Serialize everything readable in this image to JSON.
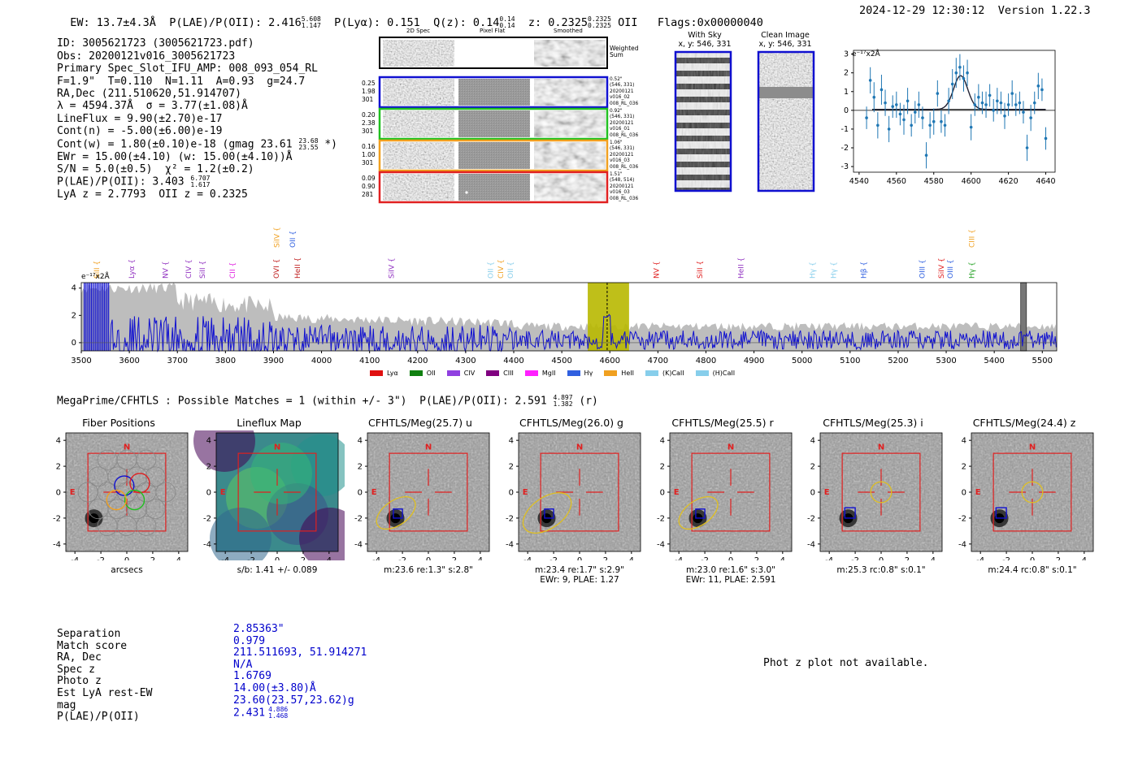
{
  "header": {
    "ew": "EW: 13.7±4.3Å",
    "plae_label": "P(LAE)/P(OII): 2.416",
    "plae_hi": "5.608",
    "plae_lo": "1.147",
    "plya": "P(Lyα): 0.151",
    "qz_label": "Q(z): 0.14",
    "qz_hi": "0.14",
    "qz_lo": "0.14",
    "z_label": "z: 0.2325",
    "z_hi": "0.2325",
    "z_lo": "0.2325",
    "z_line": "OII",
    "flags": "Flags:0x00000040",
    "timestamp": "2024-12-29 12:30:12",
    "version": "Version 1.22.3"
  },
  "info": {
    "id": "ID: 3005621723 (3005621723.pdf)",
    "obs": "Obs: 20200121v016_3005621723",
    "primary": "Primary Spec_Slot_IFU_AMP: 008_093_054_RL",
    "params": "F=1.9\"  T=0.110  N=1.11  A=0.93  g=24.7",
    "radec": "RA,Dec (211.510620,51.914707)",
    "lambda": "λ = 4594.37Å  σ = 3.77(±1.08)Å",
    "lineflux": "LineFlux = 9.90(±2.70)e-17",
    "contn": "Cont(n) = -5.00(±6.00)e-19",
    "contw": "Cont(w) = 1.80(±0.10)e-18 (gmag 23.61",
    "contw_hi": "23.68",
    "contw_lo": "23.55",
    "contw_end": "*)",
    "ewr": "EWr = 15.00(±4.10) (w: 15.00(±4.10))Å",
    "sn": "S/N = 5.0(±0.5)  χ² = 1.2(±0.2)",
    "plae": "P(LAE)/P(OII): 3.403",
    "plae_hi": "6.707",
    "plae_lo": "1.617",
    "lya": "LyA z = 2.7793  OII z = 0.2325"
  },
  "fiber_panel": {
    "col_2d": "2D Spec",
    "col_flat": "Pixel Flat",
    "col_smooth": "Smoothed",
    "weighted": "Weighted Sum",
    "rows": [
      {
        "l1": "0.25",
        "l2": "1.98",
        "l3": "301",
        "r1": "0.52\"",
        "r2": "(546, 331)",
        "r3": "20200121",
        "r4": "v016_02",
        "r5": "008_RL_036",
        "color": "#1010d0"
      },
      {
        "l1": "0.20",
        "l2": "2.38",
        "l3": "301",
        "r1": "0.92\"",
        "r2": "(546, 331)",
        "r3": "20200121",
        "r4": "v016_01",
        "r5": "008_RL_036",
        "color": "#20c020"
      },
      {
        "l1": "0.16",
        "l2": "1.00",
        "l3": "301",
        "r1": "1.06\"",
        "r2": "(546, 331)",
        "r3": "20200121",
        "r4": "v016_03",
        "r5": "008_RL_036",
        "color": "#f0a020"
      },
      {
        "l1": "0.09",
        "l2": "0.90",
        "l3": "281",
        "r1": "1.51\"",
        "r2": "(548, 514)",
        "r3": "20200121",
        "r4": "v016_03",
        "r5": "008_RL_036",
        "color": "#e02020"
      }
    ]
  },
  "sky_panels": {
    "with_sky": "With Sky",
    "with_sky_xy": "x, y: 546, 331",
    "clean": "Clean Image",
    "clean_xy": "x, y: 546, 331"
  },
  "zoom_plot": {
    "unit": "e⁻¹⁷x2Å",
    "xticks": [
      "4540",
      "4560",
      "4580",
      "4600",
      "4620",
      "4640"
    ],
    "yticks": [
      "3",
      "2",
      "1",
      "0",
      "-1",
      "-2",
      "-3"
    ]
  },
  "spectrum": {
    "unit": "e⁻¹⁷x2Å",
    "xticks": [
      "3500",
      "3600",
      "3700",
      "3800",
      "3900",
      "4000",
      "4100",
      "4200",
      "4300",
      "4400",
      "4500",
      "4600",
      "4700",
      "4800",
      "4900",
      "5000",
      "5100",
      "5200",
      "5300",
      "5400",
      "5500"
    ],
    "yticks": [
      "4",
      "2",
      "0"
    ],
    "lines": [
      {
        "name": "SiII",
        "color": "#f0a020",
        "row": "low",
        "w": 3532
      },
      {
        "name": "Lyα",
        "color": "#9030c0",
        "row": "low",
        "w": 3605
      },
      {
        "name": "NV",
        "color": "#9030c0",
        "row": "low",
        "w": 3675
      },
      {
        "name": "CIV",
        "color": "#9030c0",
        "row": "low",
        "w": 3723
      },
      {
        "name": "SiII",
        "color": "#9030c0",
        "row": "low",
        "w": 3752
      },
      {
        "name": "CII",
        "color": "#e020e0",
        "row": "low",
        "w": 3815
      },
      {
        "name": "SiIV",
        "color": "#f0a020",
        "row": "high",
        "w": 3907
      },
      {
        "name": "OII",
        "color": "#3060e0",
        "row": "high",
        "w": 3940
      },
      {
        "name": "OVI",
        "color": "#c02020",
        "row": "low",
        "w": 3906
      },
      {
        "name": "HeII",
        "color": "#c02020",
        "row": "low",
        "w": 3950
      },
      {
        "name": "SiIV",
        "color": "#9030c0",
        "row": "low",
        "w": 4145
      },
      {
        "name": "OII",
        "color": "#87ceeb",
        "row": "low",
        "w": 4352
      },
      {
        "name": "CIV",
        "color": "#f0a020",
        "row": "low",
        "w": 4373
      },
      {
        "name": "OII",
        "color": "#87ceeb",
        "row": "low",
        "w": 4393
      },
      {
        "name": "NV",
        "color": "#e02020",
        "row": "low",
        "w": 4697
      },
      {
        "name": "SiII",
        "color": "#e02020",
        "row": "low",
        "w": 4787
      },
      {
        "name": "HeII",
        "color": "#9030c0",
        "row": "low",
        "w": 4873
      },
      {
        "name": "Hγ",
        "color": "#87ceeb",
        "row": "low",
        "w": 5022
      },
      {
        "name": "Hγ",
        "color": "#87ceeb",
        "row": "low",
        "w": 5066
      },
      {
        "name": "Hβ",
        "color": "#3060e0",
        "row": "low",
        "w": 5128
      },
      {
        "name": "OIII",
        "color": "#3060e0",
        "row": "low",
        "w": 5250
      },
      {
        "name": "SiIV",
        "color": "#e02020",
        "row": "low",
        "w": 5290
      },
      {
        "name": "OIII",
        "color": "#3060e0",
        "row": "low",
        "w": 5308
      },
      {
        "name": "CIII",
        "color": "#f0a020",
        "row": "high",
        "w": 5353
      },
      {
        "name": "Hγ",
        "color": "#20a020",
        "row": "low",
        "w": 5353
      }
    ]
  },
  "legend": [
    {
      "label": "Lyα",
      "color": "#e01010"
    },
    {
      "label": "OII",
      "color": "#108010"
    },
    {
      "label": "CIV",
      "color": "#9040e0"
    },
    {
      "label": "CIII",
      "color": "#800080"
    },
    {
      "label": "MgII",
      "color": "#ff20ff"
    },
    {
      "label": "Hγ",
      "color": "#3060e0"
    },
    {
      "label": "HeII",
      "color": "#f0a020"
    },
    {
      "label": "(K)CaII",
      "color": "#87ceeb"
    },
    {
      "label": "(H)CaII",
      "color": "#87ceeb"
    }
  ],
  "megaprime": {
    "title": "MegaPrime/CFHTLS : Possible Matches = 1 (within +/- 3\")  P(LAE)/P(OII): 2.591",
    "hi": "4.897",
    "lo": "1.382",
    "band": "(r)"
  },
  "cutouts": [
    {
      "title": "Fiber Positions",
      "cap1": "arcsecs",
      "cap2": "",
      "kind": "fiber"
    },
    {
      "title": "Lineflux Map",
      "cap1": "s/b: 1.41 +/- 0.089",
      "cap2": "",
      "kind": "lineflux"
    },
    {
      "title": "CFHTLS/Meg(25.7) u",
      "cap1": "m:23.6  re:1.3\"  s:2.8\"",
      "cap2": "",
      "kind": "u"
    },
    {
      "title": "CFHTLS/Meg(26.0) g",
      "cap1": "m:23.4  re:1.7\"  s:2.9\"",
      "cap2": "EWr: 9, PLAE: 1.27",
      "kind": "g"
    },
    {
      "title": "CFHTLS/Meg(25.5) r",
      "cap1": "m:23.0  re:1.6\"  s:3.0\"",
      "cap2": "EWr: 11, PLAE: 2.591",
      "kind": "r"
    },
    {
      "title": "CFHTLS/Meg(25.3) i",
      "cap1": "m:25.3  rc:0.8\"  s:0.1\"",
      "cap2": "",
      "kind": "i"
    },
    {
      "title": "CFHTLS/Meg(24.4) z",
      "cap1": "m:24.4  rc:0.8\"  s:0.1\"",
      "cap2": "",
      "kind": "z"
    }
  ],
  "cutout_axes": {
    "ticks": [
      "4",
      "2",
      "0",
      "-2",
      "-4"
    ],
    "xticks": [
      "-4",
      "-2",
      "0",
      "2",
      "4"
    ],
    "north": "N",
    "east": "E"
  },
  "match_table": {
    "labels": [
      "Separation",
      "Match score",
      "RA, Dec",
      "Spec z",
      "Photo z",
      "Est LyA rest-EW",
      "mag",
      "P(LAE)/P(OII)"
    ],
    "values": [
      "2.85363\"",
      "0.979",
      "211.511693, 51.914271",
      "N/A",
      "1.6769",
      "14.00(±3.80)Å",
      "23.60(23.57,23.62)g",
      "2.431"
    ],
    "plae_hi": "4.886",
    "plae_lo": "1.468"
  },
  "photz": "Phot z plot not available."
}
